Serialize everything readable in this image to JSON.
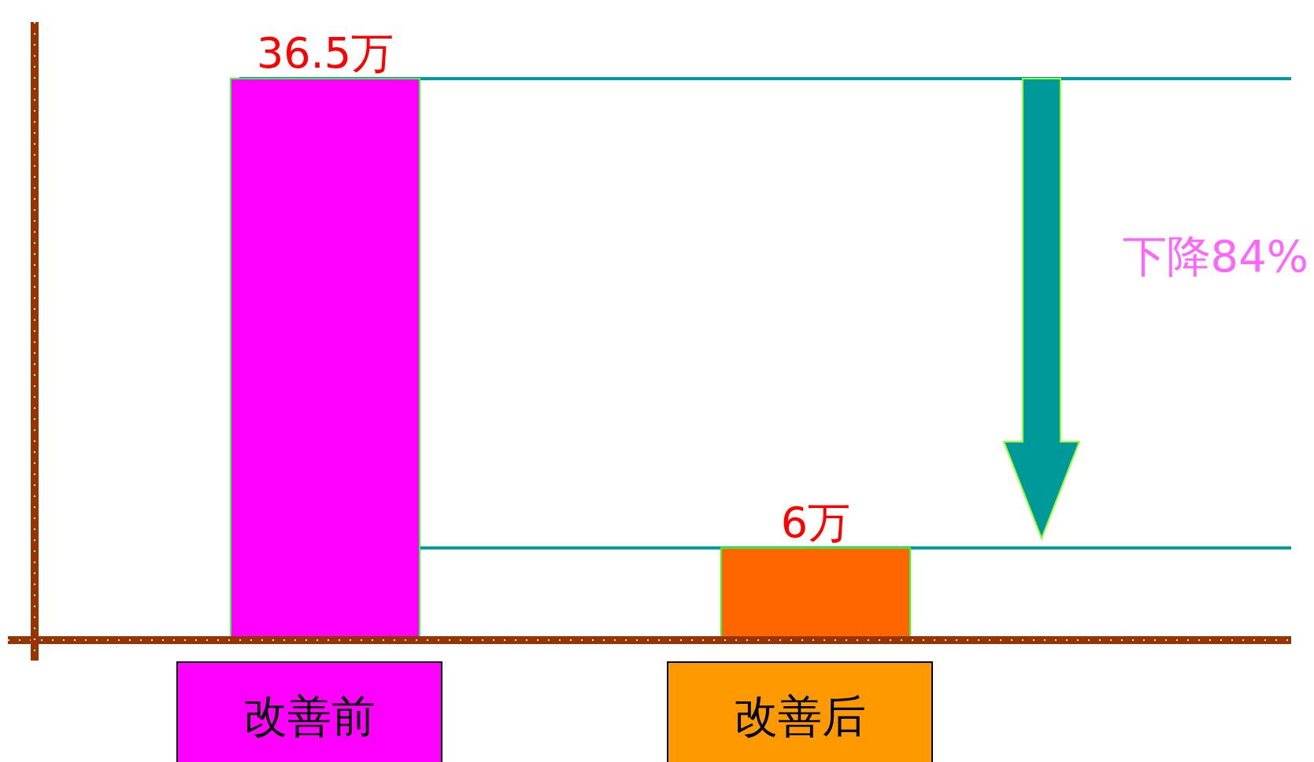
{
  "chart_data": {
    "type": "bar",
    "categories": [
      "改善前",
      "改善后"
    ],
    "values": [
      36.5,
      6
    ],
    "colors": [
      "#ff00ff",
      "#ff6600"
    ],
    "value_labels": [
      "36.5万",
      "6万"
    ],
    "annotations": [
      "下降84%"
    ],
    "ref_lines": [
      {
        "axis": "y",
        "value": 36.5,
        "color": "#009999"
      },
      {
        "axis": "y",
        "value": 6,
        "color": "#009999"
      }
    ]
  }
}
